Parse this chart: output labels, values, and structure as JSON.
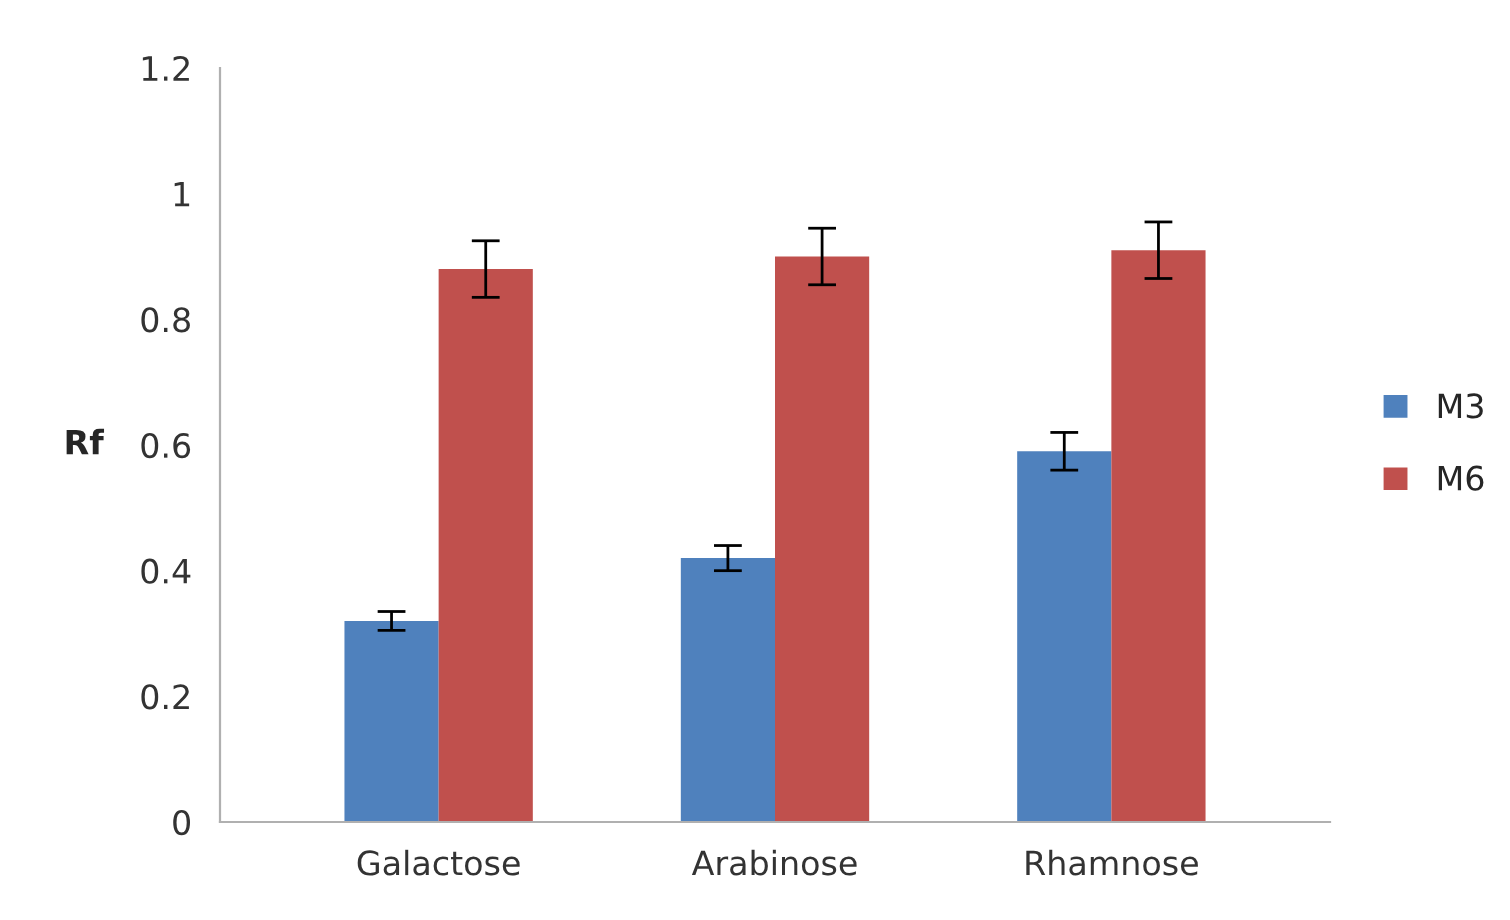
{
  "chart_data": {
    "type": "bar",
    "ylabel": "Rf",
    "categories": [
      "Galactose",
      "Arabinose",
      "Rhamnose"
    ],
    "series": [
      {
        "name": "M3",
        "color": "#4f81bd",
        "values": [
          0.32,
          0.42,
          0.59
        ],
        "errors": [
          0.015,
          0.02,
          0.03
        ]
      },
      {
        "name": "M6",
        "color": "#c0504d",
        "values": [
          0.88,
          0.9,
          0.91
        ],
        "errors": [
          0.045,
          0.045,
          0.045
        ]
      }
    ],
    "ylim": [
      0,
      1.2
    ],
    "yticks": [
      0,
      0.2,
      0.4,
      0.6,
      0.8,
      1,
      1.2
    ],
    "grid": false,
    "legend": "right"
  }
}
